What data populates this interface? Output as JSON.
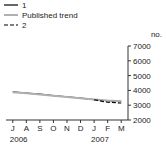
{
  "chart_data": {
    "type": "line",
    "y_label": "no.",
    "annotations": [
      {
        "text": "2006",
        "category": 0
      },
      {
        "text": "2007",
        "category": 6
      }
    ],
    "categories": [
      "J",
      "A",
      "S",
      "O",
      "N",
      "D",
      "J",
      "F",
      "M"
    ],
    "series": [
      {
        "name": "1",
        "color": "#000000",
        "line_style": "solid",
        "values": [
          3900,
          3820,
          3750,
          3650,
          3570,
          3480,
          3380,
          3300,
          3260
        ]
      },
      {
        "name": "Published trend",
        "color": "#b0b0b0",
        "line_style": "solid",
        "values": [
          3880,
          3800,
          3730,
          3640,
          3560,
          3470,
          3390,
          3310,
          3270
        ]
      },
      {
        "name": "2",
        "color": "#000000",
        "line_style": "dashed",
        "values": [
          null,
          null,
          null,
          null,
          null,
          null,
          3370,
          3200,
          3150
        ]
      }
    ],
    "ylim": [
      2000,
      7000
    ],
    "yticks": [
      2000,
      3000,
      4000,
      5000,
      6000,
      7000
    ],
    "legend": "top",
    "grid": false
  }
}
